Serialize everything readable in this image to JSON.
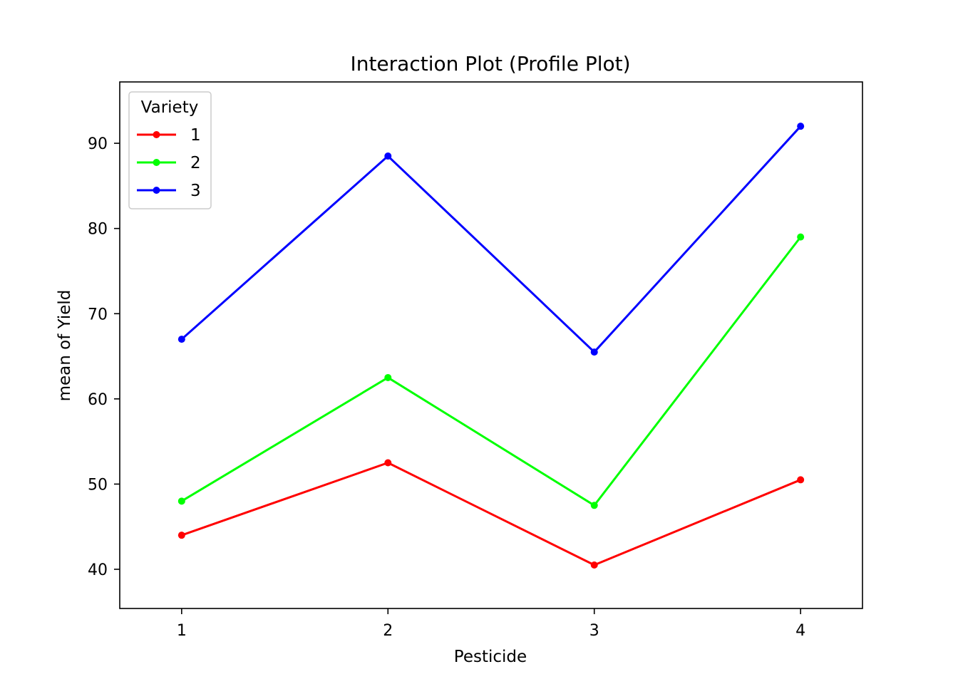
{
  "chart_data": {
    "type": "line",
    "title": "Interaction Plot (Profile Plot)",
    "xlabel": "Pesticide",
    "ylabel": "mean of Yield",
    "x": [
      1,
      2,
      3,
      4
    ],
    "x_ticks": [
      "1",
      "2",
      "3",
      "4"
    ],
    "xlim": [
      0.7,
      4.3
    ],
    "ylim": [
      35.4,
      97.2
    ],
    "y_ticks": [
      40,
      50,
      60,
      70,
      80,
      90
    ],
    "grid": false,
    "legend": {
      "title": "Variety",
      "placement": "top-left"
    },
    "series": [
      {
        "name": "1",
        "color": "#ff0000",
        "values": [
          44.0,
          52.5,
          40.5,
          50.5
        ]
      },
      {
        "name": "2",
        "color": "#00ff00",
        "values": [
          48.0,
          62.5,
          47.5,
          79.0
        ]
      },
      {
        "name": "3",
        "color": "#0000ff",
        "values": [
          67.0,
          88.5,
          65.5,
          92.0
        ]
      }
    ]
  }
}
